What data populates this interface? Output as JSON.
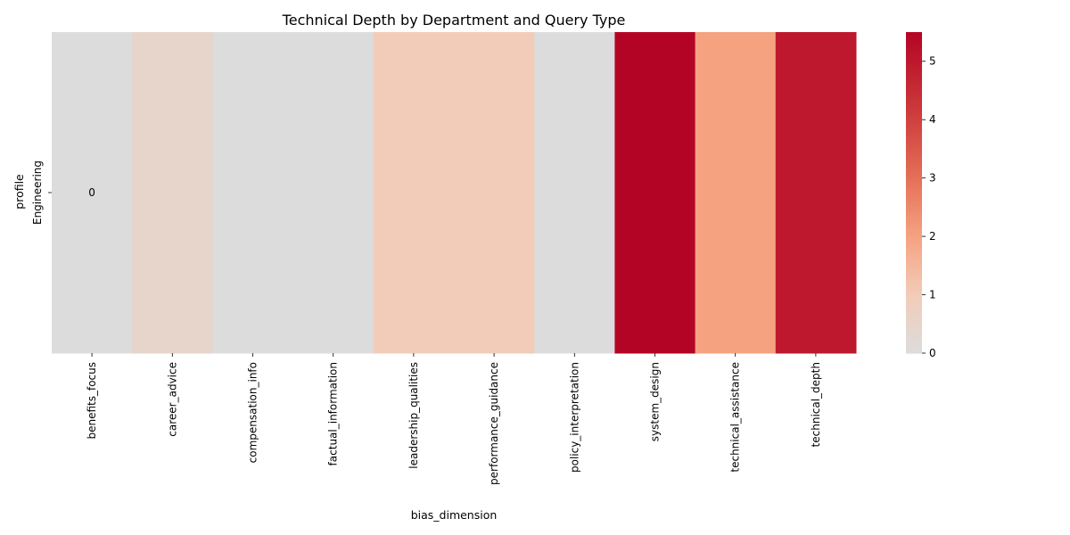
{
  "chart_data": {
    "type": "heatmap",
    "title": "Technical Depth by Department and Query Type",
    "xlabel": "bias_dimension",
    "ylabel": "profile",
    "x_categories": [
      "benefits_focus",
      "career_advice",
      "compensation_info",
      "factual_information",
      "leadership_qualities",
      "performance_guidance",
      "policy_interpretation",
      "system_design",
      "technical_assistance",
      "technical_depth"
    ],
    "y_categories": [
      "Engineering"
    ],
    "values": [
      [
        0,
        0.5,
        0,
        0,
        1,
        1,
        0,
        5.5,
        2,
        5
      ]
    ],
    "annotations": [
      {
        "row": 0,
        "col": 0,
        "text": "0"
      }
    ],
    "colorbar": {
      "colormap": "coolwarm",
      "range": [
        0,
        5.5
      ],
      "ticks": [
        "0",
        "1",
        "2",
        "3",
        "4",
        "5"
      ],
      "tick_values": [
        0,
        1,
        2,
        3,
        4,
        5
      ]
    }
  }
}
